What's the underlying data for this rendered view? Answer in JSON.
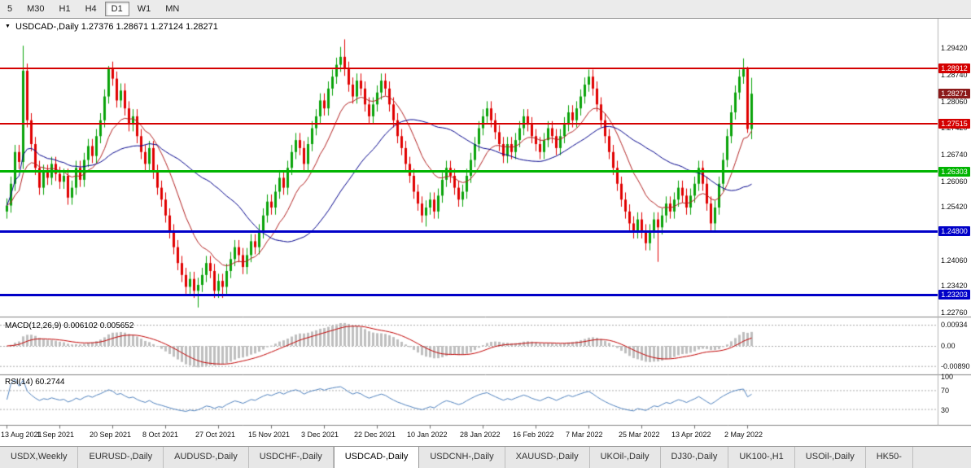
{
  "icons": {
    "chart_dropdown": "▼"
  },
  "toolbar": {
    "timeframes": [
      {
        "label": "5",
        "active": false
      },
      {
        "label": "M30",
        "active": false
      },
      {
        "label": "H1",
        "active": false
      },
      {
        "label": "H4",
        "active": false
      },
      {
        "label": "D1",
        "active": true
      },
      {
        "label": "W1",
        "active": false
      },
      {
        "label": "MN",
        "active": false
      }
    ]
  },
  "chart": {
    "title_symbol": "USDCAD-,Daily",
    "title_ohlc": "1.27376 1.28671 1.27124 1.28271"
  },
  "price_axis": {
    "labels": [
      "1.29420",
      "1.28740",
      "1.28060",
      "1.27420",
      "1.26740",
      "1.26060",
      "1.25420",
      "1.24740",
      "1.24060",
      "1.23420",
      "1.22760"
    ]
  },
  "levels": [
    {
      "price": 1.28912,
      "label": "1.28912",
      "color": "#d40000",
      "thickness": 2,
      "type": "resistance"
    },
    {
      "price": 1.27515,
      "label": "1.27515",
      "color": "#d40000",
      "thickness": 2,
      "type": "resistance"
    },
    {
      "price": 1.26303,
      "label": "1.26303",
      "color": "#00b400",
      "thickness": 3,
      "type": "support"
    },
    {
      "price": 1.248,
      "label": "1.24800",
      "color": "#0000c8",
      "thickness": 3,
      "type": "support"
    },
    {
      "price": 1.23203,
      "label": "1.23203",
      "color": "#0000c8",
      "thickness": 3,
      "type": "support"
    }
  ],
  "current_price": {
    "price": 1.28271,
    "label": "1.28271",
    "color": "#8b1a1a"
  },
  "macd": {
    "title": "MACD(12,26,9) 0.006102 0.005652",
    "value": 0.006102,
    "signal_value": 0.005652,
    "axis_labels": [
      {
        "value": 0.00934,
        "label": "0.00934"
      },
      {
        "value": 0.0,
        "label": "0.00"
      },
      {
        "value": -0.0089,
        "label": "-0.00890"
      }
    ]
  },
  "rsi": {
    "title": "RSI(14) 60.2744",
    "value": 60.2744,
    "levels": [
      70,
      30
    ],
    "axis_labels": [
      {
        "value": 100,
        "label": "100"
      },
      {
        "value": 70,
        "label": "70"
      },
      {
        "value": 30,
        "label": "30"
      }
    ]
  },
  "date_axis": {
    "labels": [
      "13 Aug 2021",
      "1 Sep 2021",
      "20 Sep 2021",
      "8 Oct 2021",
      "27 Oct 2021",
      "15 Nov 2021",
      "3 Dec 2021",
      "22 Dec 2021",
      "10 Jan 2022",
      "28 Jan 2022",
      "16 Feb 2022",
      "7 Mar 2022",
      "25 Mar 2022",
      "13 Apr 2022",
      "2 May 2022"
    ],
    "tick_interval": 13
  },
  "tabs": [
    {
      "label": "USDX,Weekly",
      "active": false
    },
    {
      "label": "EURUSD-,Daily",
      "active": false
    },
    {
      "label": "AUDUSD-,Daily",
      "active": false
    },
    {
      "label": "USDCHF-,Daily",
      "active": false
    },
    {
      "label": "USDCAD-,Daily",
      "active": true
    },
    {
      "label": "USDCNH-,Daily",
      "active": false
    },
    {
      "label": "XAUUSD-,Daily",
      "active": false
    },
    {
      "label": "UKOil-,Daily",
      "active": false
    },
    {
      "label": "DJ30-,Daily",
      "active": false
    },
    {
      "label": "UK100-,H1",
      "active": false
    },
    {
      "label": "USOil-,Daily",
      "active": false
    },
    {
      "label": "HK50-",
      "active": false
    }
  ],
  "chart_data": {
    "type": "candlestick",
    "symbol": "USDCAD",
    "period": "Daily",
    "x_range": [
      "13 Aug 2021",
      "2 May 2022"
    ],
    "price_scale": {
      "top": 1.3012,
      "bottom": 1.2267
    },
    "first_open": 1.253,
    "default_wick": 0.0018,
    "closes": [
      1.2545,
      1.26,
      1.268,
      1.2655,
      1.2885,
      1.276,
      1.27,
      1.264,
      1.259,
      1.263,
      1.2615,
      1.265,
      1.2625,
      1.2605,
      1.262,
      1.2565,
      1.259,
      1.264,
      1.261,
      1.266,
      1.2695,
      1.267,
      1.272,
      1.276,
      1.282,
      1.289,
      1.2865,
      1.281,
      1.2835,
      1.279,
      1.275,
      1.277,
      1.272,
      1.268,
      1.265,
      1.269,
      1.263,
      1.259,
      1.256,
      1.252,
      1.248,
      1.244,
      1.24,
      1.237,
      1.234,
      1.236,
      1.233,
      1.2345,
      1.237,
      1.24,
      1.238,
      1.233,
      1.2355,
      1.234,
      1.238,
      1.241,
      1.244,
      1.242,
      1.239,
      1.242,
      1.2455,
      1.244,
      1.248,
      1.252,
      1.2555,
      1.254,
      1.258,
      1.2615,
      1.259,
      1.264,
      1.268,
      1.271,
      1.269,
      1.265,
      1.27,
      1.274,
      1.277,
      1.281,
      1.279,
      1.284,
      1.287,
      1.29,
      1.292,
      1.289,
      1.285,
      1.282,
      1.286,
      1.284,
      1.28,
      1.277,
      1.28,
      1.283,
      1.286,
      1.284,
      1.28,
      1.276,
      1.272,
      1.269,
      1.265,
      1.262,
      1.258,
      1.255,
      1.252,
      1.254,
      1.256,
      1.253,
      1.257,
      1.261,
      1.264,
      1.262,
      1.259,
      1.256,
      1.258,
      1.262,
      1.266,
      1.27,
      1.274,
      1.277,
      1.279,
      1.276,
      1.273,
      1.27,
      1.267,
      1.27,
      1.268,
      1.271,
      1.274,
      1.277,
      1.275,
      1.272,
      1.27,
      1.268,
      1.271,
      1.274,
      1.272,
      1.269,
      1.272,
      1.275,
      1.278,
      1.276,
      1.279,
      1.282,
      1.285,
      1.287,
      1.284,
      1.28,
      1.276,
      1.272,
      1.268,
      1.264,
      1.26,
      1.256,
      1.253,
      1.25,
      1.248,
      1.251,
      1.248,
      1.245,
      1.248,
      1.251,
      1.249,
      1.252,
      1.255,
      1.253,
      1.256,
      1.259,
      1.257,
      1.254,
      1.257,
      1.26,
      1.264,
      1.26,
      1.255,
      1.25,
      1.254,
      1.26,
      1.266,
      1.272,
      1.278,
      1.283,
      1.287,
      1.289,
      1.2738,
      1.28271
    ],
    "wick_overrides": {
      "4": [
        1.2948,
        null
      ],
      "25": [
        1.2897,
        null
      ],
      "47": [
        null,
        1.2288
      ],
      "53": [
        null,
        1.2312
      ],
      "82": [
        1.2945,
        null
      ],
      "83": [
        1.2964,
        null
      ],
      "103": [
        null,
        1.2492
      ],
      "160": [
        null,
        1.2403
      ],
      "181": [
        1.2916,
        null
      ],
      "182": [
        1.2895,
        1.2728
      ],
      "183": [
        1.28671,
        1.27124
      ]
    },
    "last_candle_ohlc": [
      1.27376,
      1.28671,
      1.27124,
      1.28271
    ],
    "overlays": [
      {
        "name": "ma-fast",
        "type": "ema",
        "period": 13,
        "color": "#b22222"
      },
      {
        "name": "ma-slow",
        "type": "sma",
        "period": 34,
        "color": "#00008b"
      }
    ],
    "colors": {
      "up": "#0aa30a",
      "down": "#e00000",
      "macd_hist": "#bfbfbf",
      "macd_signal": "#c00000",
      "rsi_line": "#4f81bd",
      "grid_dotted": "#aaaaaa",
      "separator": "#808080"
    }
  }
}
